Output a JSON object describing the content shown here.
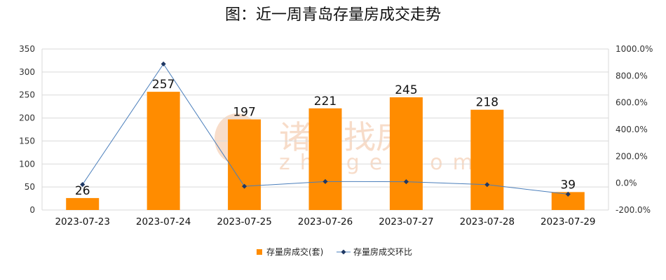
{
  "chart_data": {
    "type": "bar",
    "title": "图：近一周青岛存量房成交走势",
    "categories": [
      "2023-07-23",
      "2023-07-24",
      "2023-07-25",
      "2023-07-26",
      "2023-07-27",
      "2023-07-28",
      "2023-07-29"
    ],
    "series": [
      {
        "name": "存量房成交(套)",
        "type": "bar",
        "axis": "left",
        "values": [
          26,
          257,
          197,
          221,
          245,
          218,
          39
        ],
        "color": "#FF8C00"
      },
      {
        "name": "存量房成交环比",
        "type": "line",
        "axis": "right",
        "values": [
          -10,
          888.5,
          -23.3,
          12.2,
          10.9,
          -11.0,
          -82.1
        ],
        "color": "#4A7EBB"
      }
    ],
    "y_left": {
      "min": 0,
      "max": 350,
      "ticks": [
        "0",
        "50",
        "100",
        "150",
        "200",
        "250",
        "300",
        "350"
      ]
    },
    "y_right": {
      "min": -200,
      "max": 1000,
      "ticks": [
        "-200.0%",
        "0.0%",
        "200.0%",
        "400.0%",
        "600.0%",
        "800.0%",
        "1000.0%"
      ]
    },
    "grid": true,
    "legend_position": "bottom",
    "watermark": {
      "text": "诸葛找房",
      "sub": "zhuge.com",
      "color": "#F7D9C4"
    }
  }
}
